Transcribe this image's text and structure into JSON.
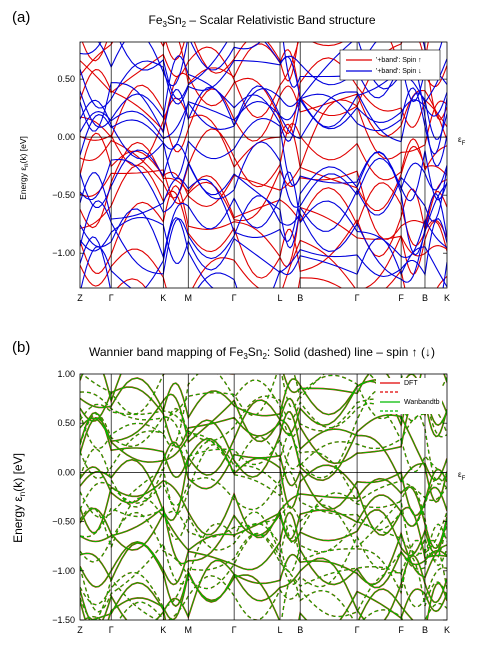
{
  "colors": {
    "spin_up": "#e00000",
    "spin_down": "#0000dd",
    "dft": "#e00000",
    "wanbandtb": "#00bb00"
  },
  "chart_data": [
    {
      "panel_label": "(a)",
      "type": "line",
      "title_main": "Fe",
      "title_sub1": "3",
      "title_mid": "Sn",
      "title_sub2": "2",
      "title_rest": " – Scalar Relativistic Band structure",
      "ylabel": "Energy εn(k) [eV]",
      "ylabel_parts": [
        "Energy ε",
        "n",
        "(k) [eV]"
      ],
      "ylim": [
        -1.3,
        0.82
      ],
      "yticks": [
        "0.50",
        "0.00",
        "−0.50",
        "−1.00"
      ],
      "ytick_values": [
        0.5,
        0.0,
        -0.5,
        -1.0
      ],
      "fermi_label": "εF",
      "fermi_parts": [
        "ε",
        "F"
      ],
      "kpath": [
        "Z",
        "Γ",
        "K",
        "M",
        "Γ",
        "L",
        "B",
        "Γ",
        "F",
        "B",
        "K"
      ],
      "kpath_positions": [
        0,
        0.085,
        0.227,
        0.295,
        0.42,
        0.545,
        0.6,
        0.755,
        0.875,
        0.94,
        1.0
      ],
      "vlines_at": [
        0.085,
        0.227,
        0.295,
        0.42,
        0.545,
        0.6,
        0.755,
        0.875,
        0.94
      ],
      "grid": true,
      "legend_position": "top-right",
      "series": [
        {
          "name": "'+band': Spin ↑",
          "color": "#e00000"
        },
        {
          "name": "'+band': Spin ↓",
          "color": "#0000dd"
        }
      ]
    },
    {
      "panel_label": "(b)",
      "type": "line",
      "title_text": "Wannier band mapping of Fe",
      "title_sub1": "3",
      "title_mid": "Sn",
      "title_sub2": "2",
      "title_rest": ": Solid (dashed) line – spin ↑ (↓)",
      "ylabel_parts": [
        "Energy ε",
        "n",
        "(k) [eV]"
      ],
      "ylim": [
        -1.5,
        1.0
      ],
      "yticks": [
        "1.00",
        "0.50",
        "0.00",
        "−0.50",
        "−1.00",
        "−1.50"
      ],
      "ytick_values": [
        1.0,
        0.5,
        0.0,
        -0.5,
        -1.0,
        -1.5
      ],
      "fermi_parts": [
        "ε",
        "F"
      ],
      "kpath": [
        "Z",
        "Γ",
        "K",
        "M",
        "Γ",
        "L",
        "B",
        "Γ",
        "F",
        "B",
        "K"
      ],
      "kpath_positions": [
        0,
        0.085,
        0.227,
        0.295,
        0.42,
        0.545,
        0.6,
        0.755,
        0.875,
        0.94,
        1.0
      ],
      "vlines_at": [
        0.085,
        0.227,
        0.295,
        0.42,
        0.545,
        0.6,
        0.755,
        0.875,
        0.94
      ],
      "grid": true,
      "legend_position": "top-right",
      "series": [
        {
          "name": "DFT",
          "color": "#e00000"
        },
        {
          "name": "",
          "color": "#e00000",
          "dashed": true
        },
        {
          "name": "Wanbandtb",
          "color": "#00bb00"
        },
        {
          "name": "",
          "color": "#00bb00",
          "dashed": true
        }
      ]
    }
  ]
}
